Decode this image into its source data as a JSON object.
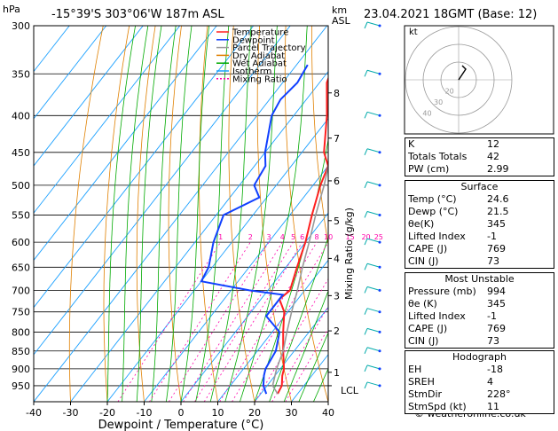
{
  "header": {
    "hpa_unit": "hPa",
    "location": "-15°39'S  303°06'W  187m  ASL",
    "km_unit": "km",
    "asl_unit": "ASL",
    "datetime": "23.04.2021  18GMT  (Base: 12)"
  },
  "chart_data": {
    "type": "skew-t",
    "xlabel": "Dewpoint / Temperature (°C)",
    "ylabel": "",
    "x_ticks": [
      -40,
      -30,
      -20,
      -10,
      0,
      10,
      20,
      30,
      40
    ],
    "pressure_ticks": [
      300,
      350,
      400,
      450,
      500,
      550,
      600,
      650,
      700,
      750,
      800,
      850,
      900,
      950
    ],
    "xlim": [
      -40,
      40
    ],
    "plim": [
      300,
      1000
    ],
    "y_scale": "log",
    "km_ticks": [
      {
        "label": "1",
        "p": 910
      },
      {
        "label": "2",
        "p": 797
      },
      {
        "label": "3",
        "p": 712
      },
      {
        "label": "4",
        "p": 632
      },
      {
        "label": "5",
        "p": 560
      },
      {
        "label": "6",
        "p": 493
      },
      {
        "label": "7",
        "p": 430
      },
      {
        "label": "8",
        "p": 372
      }
    ],
    "lcl_label": "LCL",
    "lcl_p": 950,
    "mixing_ratio_axis_label": "Mixing Ratio (g/kg)",
    "mixing_ratios": [
      1,
      2,
      3,
      4,
      5,
      6,
      8,
      10,
      15,
      20,
      25
    ],
    "mixing_ratio_label_text": [
      "1",
      "2",
      "3",
      "4",
      "5",
      "6",
      "8",
      "10",
      "15",
      "20",
      "25"
    ],
    "legend": [
      "Temperature",
      "Dewpoint",
      "Parcel Trajectory",
      "Dry Adiabat",
      "Wet Adiabat",
      "Isotherm",
      "Mixing Ratio"
    ],
    "series": [
      {
        "name": "Temperature",
        "color": "#ff2020",
        "points": [
          [
            975,
            24.6
          ],
          [
            950,
            24
          ],
          [
            920,
            22
          ],
          [
            900,
            21
          ],
          [
            850,
            17
          ],
          [
            800,
            13
          ],
          [
            750,
            9
          ],
          [
            720,
            5
          ],
          [
            700,
            6
          ],
          [
            650,
            3
          ],
          [
            600,
            0
          ],
          [
            550,
            -4
          ],
          [
            500,
            -8
          ],
          [
            470,
            -10
          ],
          [
            450,
            -14
          ],
          [
            400,
            -21
          ],
          [
            360,
            -28
          ],
          [
            340,
            -30
          ]
        ]
      },
      {
        "name": "Dewpoint",
        "color": "#1040ff",
        "points": [
          [
            975,
            21.5
          ],
          [
            950,
            19
          ],
          [
            920,
            17
          ],
          [
            900,
            16
          ],
          [
            850,
            15
          ],
          [
            800,
            12
          ],
          [
            760,
            5
          ],
          [
            740,
            5
          ],
          [
            710,
            5
          ],
          [
            700,
            -5
          ],
          [
            680,
            -20
          ],
          [
            650,
            -21
          ],
          [
            600,
            -25
          ],
          [
            550,
            -28
          ],
          [
            520,
            -22
          ],
          [
            500,
            -26
          ],
          [
            470,
            -27
          ],
          [
            450,
            -30
          ],
          [
            400,
            -36
          ],
          [
            380,
            -37
          ],
          [
            360,
            -36
          ],
          [
            340,
            -37
          ]
        ]
      },
      {
        "name": "Parcel Trajectory",
        "color": "#999999",
        "points": [
          [
            975,
            24.6
          ],
          [
            950,
            21.5
          ],
          [
            900,
            19
          ],
          [
            850,
            17
          ],
          [
            800,
            14
          ],
          [
            750,
            11
          ],
          [
            700,
            8
          ],
          [
            650,
            4.5
          ],
          [
            600,
            1
          ],
          [
            550,
            -3
          ],
          [
            500,
            -7
          ],
          [
            450,
            -12
          ],
          [
            400,
            -19
          ],
          [
            360,
            -25
          ],
          [
            340,
            -29
          ]
        ]
      }
    ],
    "wind_barb_pressures": [
      300,
      350,
      400,
      450,
      500,
      550,
      600,
      650,
      700,
      750,
      800,
      850,
      900,
      950
    ]
  },
  "hodograph": {
    "unit": "kt",
    "ring_labels": [
      "40",
      "30",
      "20"
    ]
  },
  "indices": {
    "rows": [
      {
        "label": "K",
        "value": "12"
      },
      {
        "label": "Totals Totals",
        "value": "42"
      },
      {
        "label": "PW (cm)",
        "value": "2.99"
      }
    ]
  },
  "surface": {
    "title": "Surface",
    "rows": [
      {
        "label": "Temp (°C)",
        "value": "24.6"
      },
      {
        "label": "Dewp (°C)",
        "value": "21.5"
      },
      {
        "label": "θe(K)",
        "value": "345"
      },
      {
        "label": "Lifted Index",
        "value": "-1"
      },
      {
        "label": "CAPE (J)",
        "value": "769"
      },
      {
        "label": "CIN (J)",
        "value": "73"
      }
    ]
  },
  "most_unstable": {
    "title": "Most Unstable",
    "rows": [
      {
        "label": "Pressure (mb)",
        "value": "994"
      },
      {
        "label": "θe (K)",
        "value": "345"
      },
      {
        "label": "Lifted Index",
        "value": "-1"
      },
      {
        "label": "CAPE (J)",
        "value": "769"
      },
      {
        "label": "CIN (J)",
        "value": "73"
      }
    ]
  },
  "hodograph_table": {
    "title": "Hodograph",
    "rows": [
      {
        "label": "EH",
        "value": "-18"
      },
      {
        "label": "SREH",
        "value": "4"
      },
      {
        "label": "StmDir",
        "value": "228°"
      },
      {
        "label": "StmSpd (kt)",
        "value": "11"
      }
    ]
  },
  "footer": {
    "copyright": "© weatheronline.co.uk"
  },
  "colors": {
    "isotherm": "#1aa0ff",
    "dry_adiabat": "#e08000",
    "wet_adiabat": "#00aa00",
    "mixing_ratio": "#ff00aa",
    "temperature": "#ff2020",
    "dewpoint": "#1040ff",
    "parcel": "#999999",
    "wind_barb": "#00aaaa"
  }
}
